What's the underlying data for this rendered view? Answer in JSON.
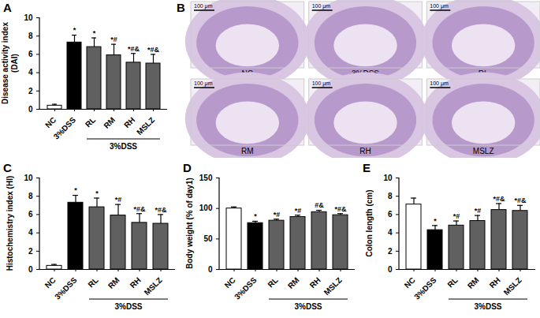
{
  "chart_data": [
    {
      "type": "bar",
      "title": "A",
      "y_label": "Disease activity index\n(DAI)",
      "categories": [
        "NC",
        "3%DSS",
        "RL",
        "RM",
        "RH",
        "MSLZ"
      ],
      "values": [
        0.4,
        7.3,
        6.8,
        5.9,
        5.1,
        5.0
      ],
      "errors": [
        0.15,
        0.8,
        1.0,
        1.2,
        1.0,
        1.0
      ],
      "significance": [
        null,
        "*",
        "*",
        "*#",
        "*#&",
        "*#&"
      ],
      "colors": [
        "#ffffff",
        "#000000",
        "#606060",
        "#606060",
        "#606060",
        "#606060"
      ],
      "ylim": [
        0,
        10
      ],
      "yticks": [
        0,
        2,
        4,
        6,
        8,
        10
      ],
      "annotations": [
        {
          "text": "3%DSS",
          "from": "RL",
          "to": "MSLZ"
        }
      ]
    },
    {
      "type": "bar",
      "title": "C",
      "y_label": "Histochemistry index (HI)",
      "categories": [
        "NC",
        "3%DSS",
        "RL",
        "RM",
        "RH",
        "MSLZ"
      ],
      "values": [
        0.4,
        7.3,
        6.8,
        5.9,
        5.1,
        5.0
      ],
      "errors": [
        0.15,
        0.8,
        1.0,
        1.2,
        1.0,
        1.0
      ],
      "significance": [
        null,
        "*",
        "*",
        "*#",
        "*#&",
        "*#&"
      ],
      "colors": [
        "#ffffff",
        "#000000",
        "#606060",
        "#606060",
        "#606060",
        "#606060"
      ],
      "ylim": [
        0,
        10
      ],
      "yticks": [
        0,
        2,
        4,
        6,
        8,
        10
      ],
      "annotations": [
        {
          "text": "3%DSS",
          "from": "RL",
          "to": "MSLZ"
        }
      ]
    },
    {
      "type": "bar",
      "title": "D",
      "y_label": "Body weight (% of day1)",
      "categories": [
        "NC",
        "3%DSS",
        "RL",
        "RM",
        "RH",
        "MSLZ"
      ],
      "values": [
        100,
        76,
        80,
        86,
        94,
        89
      ],
      "errors": [
        2.5,
        3,
        2.5,
        3,
        3,
        2.5
      ],
      "significance": [
        null,
        "*",
        "*#",
        "*#",
        "#&",
        "*#&"
      ],
      "colors": [
        "#ffffff",
        "#000000",
        "#606060",
        "#606060",
        "#606060",
        "#606060"
      ],
      "ylim": [
        0,
        150
      ],
      "yticks": [
        0,
        50,
        100,
        150
      ],
      "annotations": [
        {
          "text": "3%DSS",
          "from": "RL",
          "to": "MSLZ"
        }
      ]
    },
    {
      "type": "bar",
      "title": "E",
      "y_label": "Colon length (cm)",
      "categories": [
        "NC",
        "3%DSS",
        "RL",
        "RM",
        "RH",
        "MSLZ"
      ],
      "values": [
        7.1,
        4.3,
        4.8,
        5.3,
        6.5,
        6.4
      ],
      "errors": [
        0.7,
        0.5,
        0.5,
        0.6,
        0.7,
        0.6
      ],
      "significance": [
        null,
        "*",
        "*#",
        "*#",
        "*#&",
        "*#&"
      ],
      "colors": [
        "#ffffff",
        "#000000",
        "#606060",
        "#606060",
        "#606060",
        "#606060"
      ],
      "ylim": [
        0,
        10
      ],
      "yticks": [
        0,
        2,
        4,
        6,
        8,
        10
      ],
      "annotations": [
        {
          "text": "3%DSS",
          "from": "RL",
          "to": "MSLZ"
        }
      ]
    }
  ],
  "image_panel": {
    "title": "B",
    "scale_bar": "100 μm",
    "images": [
      "NC",
      "3%DSS",
      "RL",
      "RM",
      "RH",
      "MSLZ"
    ]
  }
}
